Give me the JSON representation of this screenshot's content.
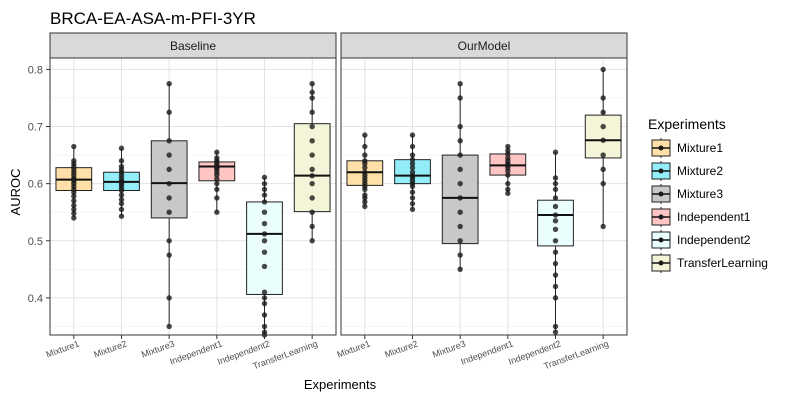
{
  "chart_data": {
    "type": "boxplot",
    "title": "BRCA-EA-ASA-m-PFI-3YR",
    "xlabel": "Experiments",
    "ylabel": "AUROC",
    "ylim": [
      0.335,
      0.82
    ],
    "yticks": [
      0.4,
      0.5,
      0.6,
      0.7,
      0.8
    ],
    "grid": true,
    "legend": {
      "title": "Experiments",
      "position": "right"
    },
    "categories": [
      "Mixture1",
      "Mixture2",
      "Mixture3",
      "Independent1",
      "Independent2",
      "TransferLearning"
    ],
    "colors": {
      "Mixture1": "#ffe0a8",
      "Mixture2": "#93eefa",
      "Mixture3": "#c8c8c8",
      "Independent1": "#ffc4c4",
      "Independent2": "#eafefe",
      "TransferLearning": "#f4f4d8"
    },
    "panels": [
      {
        "name": "Baseline",
        "boxes": [
          {
            "category": "Mixture1",
            "q1": 0.588,
            "median": 0.607,
            "q3": 0.628,
            "lower": 0.54,
            "upper": 0.665,
            "points": [
              0.665,
              0.64,
              0.635,
              0.63,
              0.625,
              0.62,
              0.615,
              0.61,
              0.607,
              0.605,
              0.6,
              0.595,
              0.59,
              0.585,
              0.578,
              0.57,
              0.562,
              0.555,
              0.548,
              0.54
            ]
          },
          {
            "category": "Mixture2",
            "q1": 0.588,
            "median": 0.603,
            "q3": 0.62,
            "lower": 0.543,
            "upper": 0.662,
            "points": [
              0.662,
              0.64,
              0.63,
              0.625,
              0.62,
              0.615,
              0.61,
              0.605,
              0.603,
              0.6,
              0.597,
              0.592,
              0.588,
              0.58,
              0.572,
              0.565,
              0.555,
              0.543
            ]
          },
          {
            "category": "Mixture3",
            "q1": 0.54,
            "median": 0.601,
            "q3": 0.675,
            "lower": 0.35,
            "upper": 0.775,
            "points": [
              0.775,
              0.725,
              0.675,
              0.65,
              0.625,
              0.6,
              0.575,
              0.55,
              0.5,
              0.475,
              0.4,
              0.35
            ]
          },
          {
            "category": "Independent1",
            "q1": 0.605,
            "median": 0.63,
            "q3": 0.638,
            "lower": 0.55,
            "upper": 0.655,
            "points": [
              0.655,
              0.645,
              0.64,
              0.637,
              0.633,
              0.63,
              0.628,
              0.625,
              0.62,
              0.615,
              0.608,
              0.6,
              0.59,
              0.575,
              0.55
            ]
          },
          {
            "category": "Independent2",
            "q1": 0.406,
            "median": 0.512,
            "q3": 0.568,
            "lower": 0.335,
            "upper": 0.611,
            "points": [
              0.611,
              0.6,
              0.59,
              0.58,
              0.568,
              0.55,
              0.53,
              0.512,
              0.5,
              0.48,
              0.455,
              0.41,
              0.4,
              0.39,
              0.37,
              0.35,
              0.34,
              0.335
            ]
          },
          {
            "category": "TransferLearning",
            "q1": 0.551,
            "median": 0.614,
            "q3": 0.705,
            "lower": 0.5,
            "upper": 0.775,
            "points": [
              0.775,
              0.76,
              0.75,
              0.725,
              0.7,
              0.675,
              0.65,
              0.625,
              0.614,
              0.6,
              0.575,
              0.55,
              0.525,
              0.5
            ]
          }
        ]
      },
      {
        "name": "OurModel",
        "boxes": [
          {
            "category": "Mixture1",
            "q1": 0.597,
            "median": 0.62,
            "q3": 0.64,
            "lower": 0.56,
            "upper": 0.685,
            "points": [
              0.685,
              0.665,
              0.65,
              0.64,
              0.635,
              0.628,
              0.62,
              0.615,
              0.61,
              0.605,
              0.6,
              0.595,
              0.59,
              0.58,
              0.575,
              0.568,
              0.56
            ]
          },
          {
            "category": "Mixture2",
            "q1": 0.6,
            "median": 0.614,
            "q3": 0.642,
            "lower": 0.555,
            "upper": 0.685,
            "points": [
              0.685,
              0.665,
              0.65,
              0.642,
              0.635,
              0.628,
              0.62,
              0.614,
              0.61,
              0.605,
              0.6,
              0.595,
              0.585,
              0.575,
              0.565,
              0.555
            ]
          },
          {
            "category": "Mixture3",
            "q1": 0.495,
            "median": 0.575,
            "q3": 0.65,
            "lower": 0.45,
            "upper": 0.775,
            "points": [
              0.775,
              0.75,
              0.7,
              0.675,
              0.65,
              0.625,
              0.6,
              0.575,
              0.55,
              0.525,
              0.5,
              0.475,
              0.45
            ]
          },
          {
            "category": "Independent1",
            "q1": 0.615,
            "median": 0.632,
            "q3": 0.652,
            "lower": 0.583,
            "upper": 0.665,
            "points": [
              0.665,
              0.658,
              0.652,
              0.645,
              0.64,
              0.635,
              0.632,
              0.628,
              0.622,
              0.615,
              0.6,
              0.59,
              0.583
            ]
          },
          {
            "category": "Independent2",
            "q1": 0.491,
            "median": 0.545,
            "q3": 0.571,
            "lower": 0.34,
            "upper": 0.655,
            "points": [
              0.655,
              0.61,
              0.6,
              0.59,
              0.575,
              0.56,
              0.545,
              0.535,
              0.52,
              0.5,
              0.48,
              0.46,
              0.44,
              0.42,
              0.4,
              0.35,
              0.34
            ]
          },
          {
            "category": "TransferLearning",
            "q1": 0.645,
            "median": 0.676,
            "q3": 0.72,
            "lower": 0.525,
            "upper": 0.8,
            "points": [
              0.8,
              0.75,
              0.725,
              0.7,
              0.676,
              0.65,
              0.625,
              0.6,
              0.525
            ]
          }
        ]
      }
    ]
  }
}
